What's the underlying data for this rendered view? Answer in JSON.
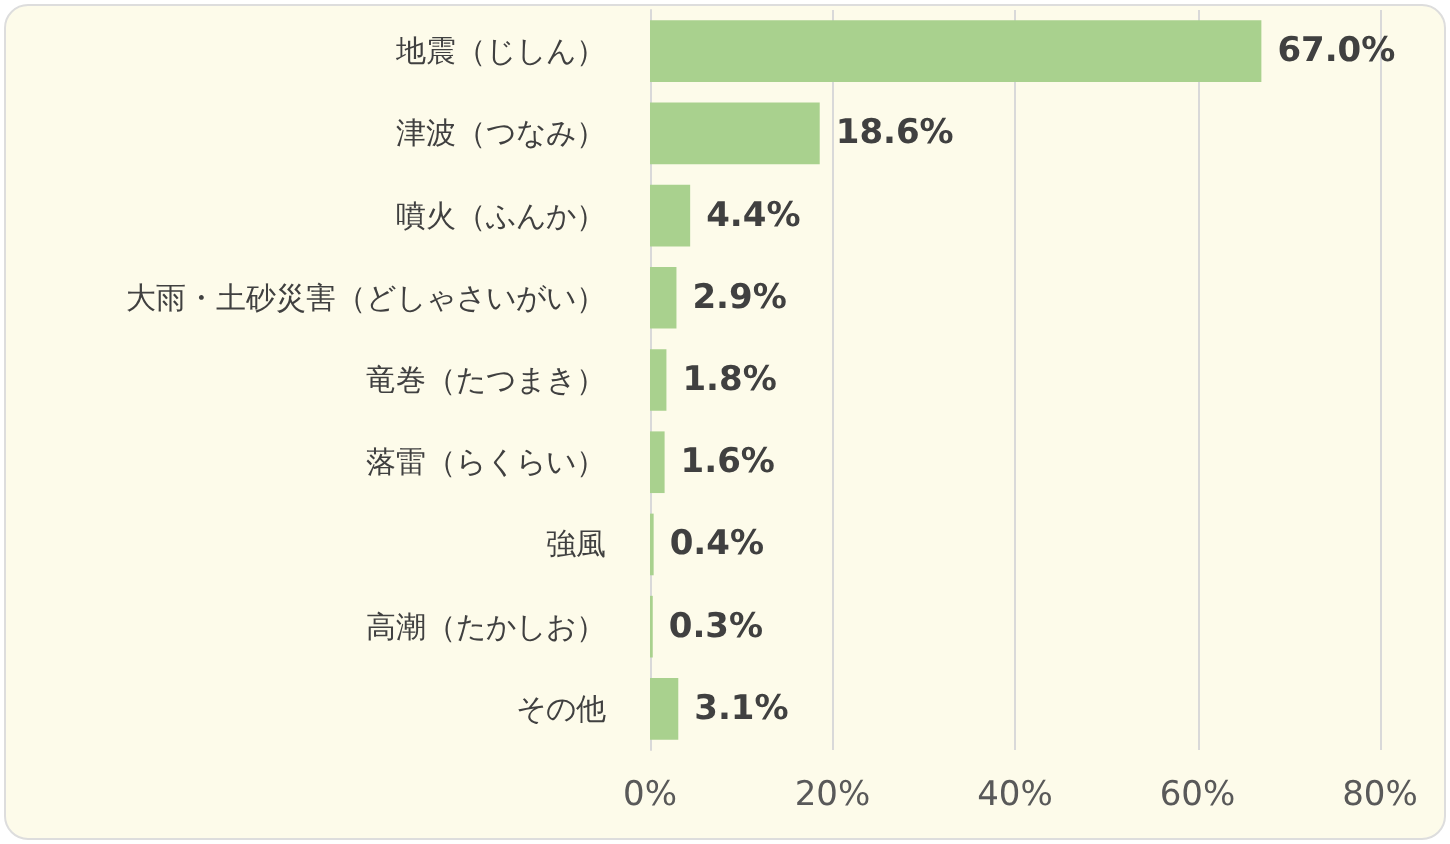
{
  "chart_data": {
    "type": "bar",
    "orientation": "horizontal",
    "categories": [
      "地震（じしん）",
      "津波（つなみ）",
      "噴火（ふんか）",
      "大雨・土砂災害（どしゃさいがい）",
      "竜巻（たつまき）",
      "落雷（らくらい）",
      "強風",
      "高潮（たかしお）",
      "その他"
    ],
    "values": [
      67.0,
      18.6,
      4.4,
      2.9,
      1.8,
      1.6,
      0.4,
      0.3,
      3.1
    ],
    "value_labels": [
      "67.0%",
      "18.6%",
      "4.4%",
      "2.9%",
      "1.8%",
      "1.6%",
      "0.4%",
      "0.3%",
      "3.1%"
    ],
    "color": "#a9d18e",
    "xlim": [
      0,
      80
    ],
    "xticks": [
      {
        "value": 0,
        "label": "0%"
      },
      {
        "value": 20,
        "label": "20%"
      },
      {
        "value": 40,
        "label": "40%"
      },
      {
        "value": 60,
        "label": "60%"
      },
      {
        "value": 80,
        "label": "80%"
      }
    ],
    "grid": "x"
  }
}
